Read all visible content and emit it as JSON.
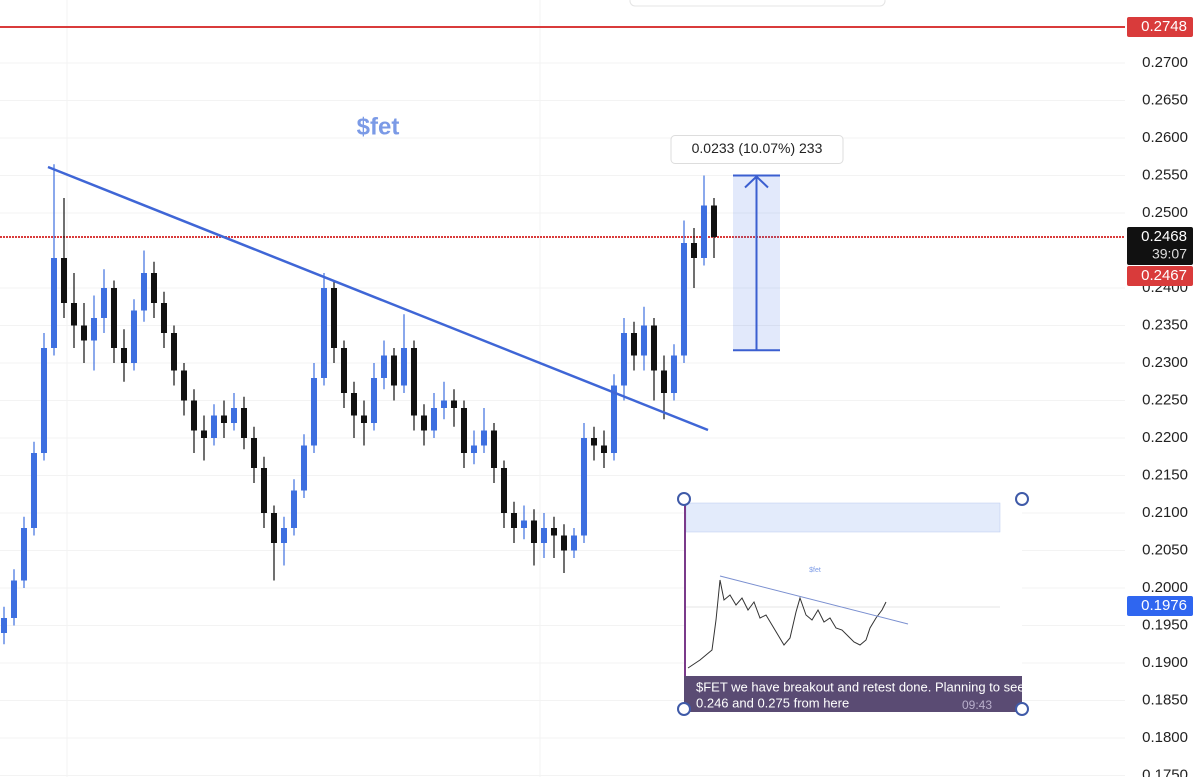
{
  "chart_data": {
    "type": "candlestick",
    "title": "$fet",
    "up_color": "#3d6fe0",
    "down_color": "#111111",
    "grid": true,
    "ylim": [
      0.1748,
      0.2784
    ],
    "yticks": [
      {
        "value": 0.27,
        "label": "0.2700"
      },
      {
        "value": 0.265,
        "label": "0.2650"
      },
      {
        "value": 0.26,
        "label": "0.2600"
      },
      {
        "value": 0.255,
        "label": "0.2550"
      },
      {
        "value": 0.25,
        "label": "0.2500"
      },
      {
        "value": 0.24,
        "label": "0.2400"
      },
      {
        "value": 0.235,
        "label": "0.2350"
      },
      {
        "value": 0.23,
        "label": "0.2300"
      },
      {
        "value": 0.225,
        "label": "0.2250"
      },
      {
        "value": 0.22,
        "label": "0.2200"
      },
      {
        "value": 0.215,
        "label": "0.2150"
      },
      {
        "value": 0.21,
        "label": "0.2100"
      },
      {
        "value": 0.205,
        "label": "0.2050"
      },
      {
        "value": 0.2,
        "label": "0.2000"
      },
      {
        "value": 0.195,
        "label": "0.1950"
      },
      {
        "value": 0.19,
        "label": "0.1900"
      },
      {
        "value": 0.185,
        "label": "0.1850"
      },
      {
        "value": 0.18,
        "label": "0.1800"
      },
      {
        "value": 0.175,
        "label": "0.1750"
      }
    ],
    "ohlc": [
      [
        0.194,
        0.1975,
        0.1925,
        0.196
      ],
      [
        0.196,
        0.2025,
        0.195,
        0.201
      ],
      [
        0.201,
        0.2095,
        0.2,
        0.208
      ],
      [
        0.208,
        0.2195,
        0.207,
        0.218
      ],
      [
        0.218,
        0.234,
        0.217,
        0.232
      ],
      [
        0.232,
        0.2565,
        0.231,
        0.244
      ],
      [
        0.244,
        0.252,
        0.236,
        0.238
      ],
      [
        0.238,
        0.242,
        0.232,
        0.235
      ],
      [
        0.235,
        0.238,
        0.23,
        0.233
      ],
      [
        0.233,
        0.239,
        0.229,
        0.236
      ],
      [
        0.236,
        0.2425,
        0.234,
        0.24
      ],
      [
        0.24,
        0.241,
        0.23,
        0.232
      ],
      [
        0.232,
        0.2345,
        0.2275,
        0.23
      ],
      [
        0.23,
        0.2385,
        0.229,
        0.237
      ],
      [
        0.237,
        0.245,
        0.2355,
        0.242
      ],
      [
        0.242,
        0.2435,
        0.236,
        0.238
      ],
      [
        0.238,
        0.2395,
        0.232,
        0.234
      ],
      [
        0.234,
        0.235,
        0.227,
        0.229
      ],
      [
        0.229,
        0.23,
        0.223,
        0.225
      ],
      [
        0.225,
        0.2265,
        0.218,
        0.221
      ],
      [
        0.221,
        0.223,
        0.217,
        0.22
      ],
      [
        0.22,
        0.2245,
        0.219,
        0.223
      ],
      [
        0.223,
        0.225,
        0.22,
        0.222
      ],
      [
        0.222,
        0.226,
        0.221,
        0.224
      ],
      [
        0.224,
        0.2255,
        0.2185,
        0.22
      ],
      [
        0.22,
        0.2215,
        0.214,
        0.216
      ],
      [
        0.216,
        0.2175,
        0.208,
        0.21
      ],
      [
        0.21,
        0.211,
        0.201,
        0.206
      ],
      [
        0.206,
        0.2095,
        0.203,
        0.208
      ],
      [
        0.208,
        0.2145,
        0.207,
        0.213
      ],
      [
        0.213,
        0.2205,
        0.212,
        0.219
      ],
      [
        0.219,
        0.23,
        0.218,
        0.228
      ],
      [
        0.228,
        0.242,
        0.227,
        0.24
      ],
      [
        0.24,
        0.241,
        0.23,
        0.232
      ],
      [
        0.232,
        0.233,
        0.224,
        0.226
      ],
      [
        0.226,
        0.2275,
        0.22,
        0.223
      ],
      [
        0.223,
        0.225,
        0.219,
        0.222
      ],
      [
        0.222,
        0.23,
        0.221,
        0.228
      ],
      [
        0.228,
        0.233,
        0.2265,
        0.231
      ],
      [
        0.231,
        0.232,
        0.225,
        0.227
      ],
      [
        0.227,
        0.2365,
        0.226,
        0.232
      ],
      [
        0.232,
        0.233,
        0.221,
        0.223
      ],
      [
        0.223,
        0.2245,
        0.219,
        0.221
      ],
      [
        0.221,
        0.226,
        0.22,
        0.224
      ],
      [
        0.224,
        0.2275,
        0.2225,
        0.225
      ],
      [
        0.225,
        0.2265,
        0.2215,
        0.224
      ],
      [
        0.224,
        0.225,
        0.216,
        0.218
      ],
      [
        0.218,
        0.221,
        0.2165,
        0.219
      ],
      [
        0.219,
        0.224,
        0.218,
        0.221
      ],
      [
        0.221,
        0.222,
        0.214,
        0.216
      ],
      [
        0.216,
        0.217,
        0.208,
        0.21
      ],
      [
        0.21,
        0.2115,
        0.206,
        0.208
      ],
      [
        0.208,
        0.211,
        0.2065,
        0.209
      ],
      [
        0.209,
        0.2105,
        0.203,
        0.206
      ],
      [
        0.206,
        0.21,
        0.204,
        0.208
      ],
      [
        0.208,
        0.2095,
        0.204,
        0.207
      ],
      [
        0.207,
        0.2085,
        0.202,
        0.205
      ],
      [
        0.205,
        0.208,
        0.204,
        0.207
      ],
      [
        0.207,
        0.222,
        0.206,
        0.22
      ],
      [
        0.22,
        0.2215,
        0.217,
        0.219
      ],
      [
        0.219,
        0.221,
        0.216,
        0.218
      ],
      [
        0.218,
        0.2285,
        0.217,
        0.227
      ],
      [
        0.227,
        0.236,
        0.225,
        0.234
      ],
      [
        0.234,
        0.2355,
        0.229,
        0.231
      ],
      [
        0.231,
        0.2375,
        0.229,
        0.235
      ],
      [
        0.235,
        0.236,
        0.225,
        0.229
      ],
      [
        0.229,
        0.231,
        0.2225,
        0.226
      ],
      [
        0.226,
        0.2325,
        0.225,
        0.231
      ],
      [
        0.231,
        0.249,
        0.23,
        0.246
      ],
      [
        0.246,
        0.248,
        0.24,
        0.244
      ],
      [
        0.244,
        0.255,
        0.243,
        0.251
      ],
      [
        0.251,
        0.252,
        0.244,
        0.2468
      ]
    ],
    "price_labels": [
      {
        "value": 0.2748,
        "label": "0.2748",
        "color": "#d93b3b"
      },
      {
        "value": 0.2468,
        "label": "0.2468",
        "sub": "39:07",
        "color": "#111111"
      },
      {
        "value": 0.2467,
        "label": "0.2467",
        "color": "#d93b3b"
      },
      {
        "value": 0.1976,
        "label": "0.1976",
        "color": "#2f66f0"
      }
    ],
    "measure": {
      "from": 0.2317,
      "to": 0.255,
      "label": "0.0233 (10.07%) 233"
    },
    "inset": {
      "title": "$fet",
      "message_lines": [
        "$FET we have breakout and retest done. Planning to see",
        "0.246 and 0.275 from here"
      ],
      "time": "09:43"
    }
  }
}
